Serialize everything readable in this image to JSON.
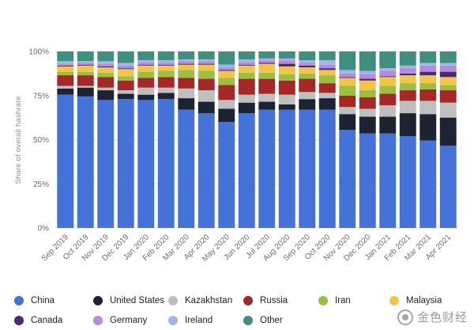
{
  "chart_data": {
    "type": "bar",
    "stacked": true,
    "ylabel": "Share of overall hashrate",
    "ylim": [
      0,
      100
    ],
    "y_ticks": [
      "0%",
      "25%",
      "50%",
      "75%",
      "100%"
    ],
    "grid": true,
    "legend_position": "bottom",
    "categories": [
      "Sep 2019",
      "Oct 2019",
      "Nov 2019",
      "Dec 2019",
      "Jan 2020",
      "Feb 2020",
      "Mar 2020",
      "Apr 2020",
      "May 2020",
      "Jun 2020",
      "Jul 2020",
      "Aug 2020",
      "Sep 2020",
      "Oct 2020",
      "Nov 2020",
      "Dec 2020",
      "Jan 2021",
      "Feb 2021",
      "Mar 2021",
      "Apr 2021"
    ],
    "series": [
      {
        "name": "China",
        "color": "#4472d9",
        "values": [
          75.5,
          74.5,
          72.5,
          73.0,
          72.5,
          73.0,
          67.0,
          65.0,
          60.0,
          65.0,
          67.0,
          67.0,
          67.0,
          67.0,
          55.5,
          53.5,
          53.5,
          52.0,
          49.5,
          46.5
        ]
      },
      {
        "name": "United States",
        "color": "#1c2333",
        "values": [
          3.5,
          5.0,
          5.5,
          3.0,
          3.0,
          3.5,
          6.5,
          6.5,
          7.5,
          6.0,
          4.5,
          3.0,
          6.0,
          6.5,
          9.0,
          9.5,
          9.5,
          13.0,
          15.0,
          16.0
        ]
      },
      {
        "name": "Kazakhstan",
        "color": "#bfbfbf",
        "values": [
          1.5,
          1.0,
          1.5,
          2.0,
          4.0,
          3.0,
          5.5,
          6.5,
          5.0,
          4.5,
          4.5,
          5.5,
          4.0,
          3.0,
          4.0,
          4.5,
          6.5,
          7.0,
          7.5,
          8.5
        ]
      },
      {
        "name": "Russia",
        "color": "#a52828",
        "values": [
          6.0,
          6.0,
          6.0,
          5.5,
          5.5,
          6.0,
          6.0,
          6.5,
          8.5,
          9.0,
          8.5,
          8.0,
          7.5,
          5.5,
          6.5,
          6.5,
          6.5,
          6.0,
          6.5,
          7.0
        ]
      },
      {
        "name": "Iran",
        "color": "#9bbf3f",
        "values": [
          2.0,
          2.0,
          2.5,
          2.5,
          3.5,
          3.5,
          4.5,
          4.5,
          4.0,
          3.5,
          3.5,
          3.5,
          3.0,
          4.5,
          5.5,
          4.0,
          4.5,
          4.0,
          3.5,
          3.0
        ]
      },
      {
        "name": "Malaysia",
        "color": "#f2c54a",
        "values": [
          3.0,
          3.5,
          3.0,
          4.0,
          3.5,
          3.0,
          3.0,
          3.5,
          4.0,
          4.0,
          5.0,
          4.5,
          3.5,
          3.0,
          4.5,
          5.5,
          5.0,
          4.5,
          4.5,
          4.5
        ]
      },
      {
        "name": "Canada",
        "color": "#4b2a6b",
        "values": [
          0.5,
          0.5,
          0.5,
          0.5,
          0.5,
          0.5,
          0.5,
          0.5,
          0.5,
          0.5,
          0.5,
          1.5,
          1.0,
          1.0,
          0.5,
          1.0,
          0.5,
          1.0,
          2.0,
          3.0
        ]
      },
      {
        "name": "Germany",
        "color": "#b58ae0",
        "values": [
          1.0,
          1.0,
          1.5,
          1.5,
          1.5,
          1.0,
          1.5,
          1.5,
          1.5,
          1.5,
          1.5,
          2.0,
          1.5,
          2.0,
          2.0,
          2.5,
          3.0,
          3.0,
          3.5,
          3.5
        ]
      },
      {
        "name": "Ireland",
        "color": "#9db8e8",
        "values": [
          1.5,
          1.0,
          1.5,
          1.5,
          1.0,
          1.5,
          1.0,
          1.0,
          1.5,
          1.5,
          1.0,
          1.0,
          1.5,
          2.5,
          2.0,
          2.0,
          1.5,
          1.5,
          1.5,
          1.5
        ]
      },
      {
        "name": "Other",
        "color": "#3f8f7e",
        "values": [
          5.5,
          5.5,
          5.5,
          6.5,
          5.0,
          5.0,
          4.5,
          4.5,
          7.5,
          4.5,
          4.0,
          4.0,
          5.0,
          5.0,
          10.5,
          11.0,
          9.5,
          8.0,
          6.5,
          6.5
        ]
      }
    ]
  },
  "watermark": {
    "text": "金色财经"
  }
}
